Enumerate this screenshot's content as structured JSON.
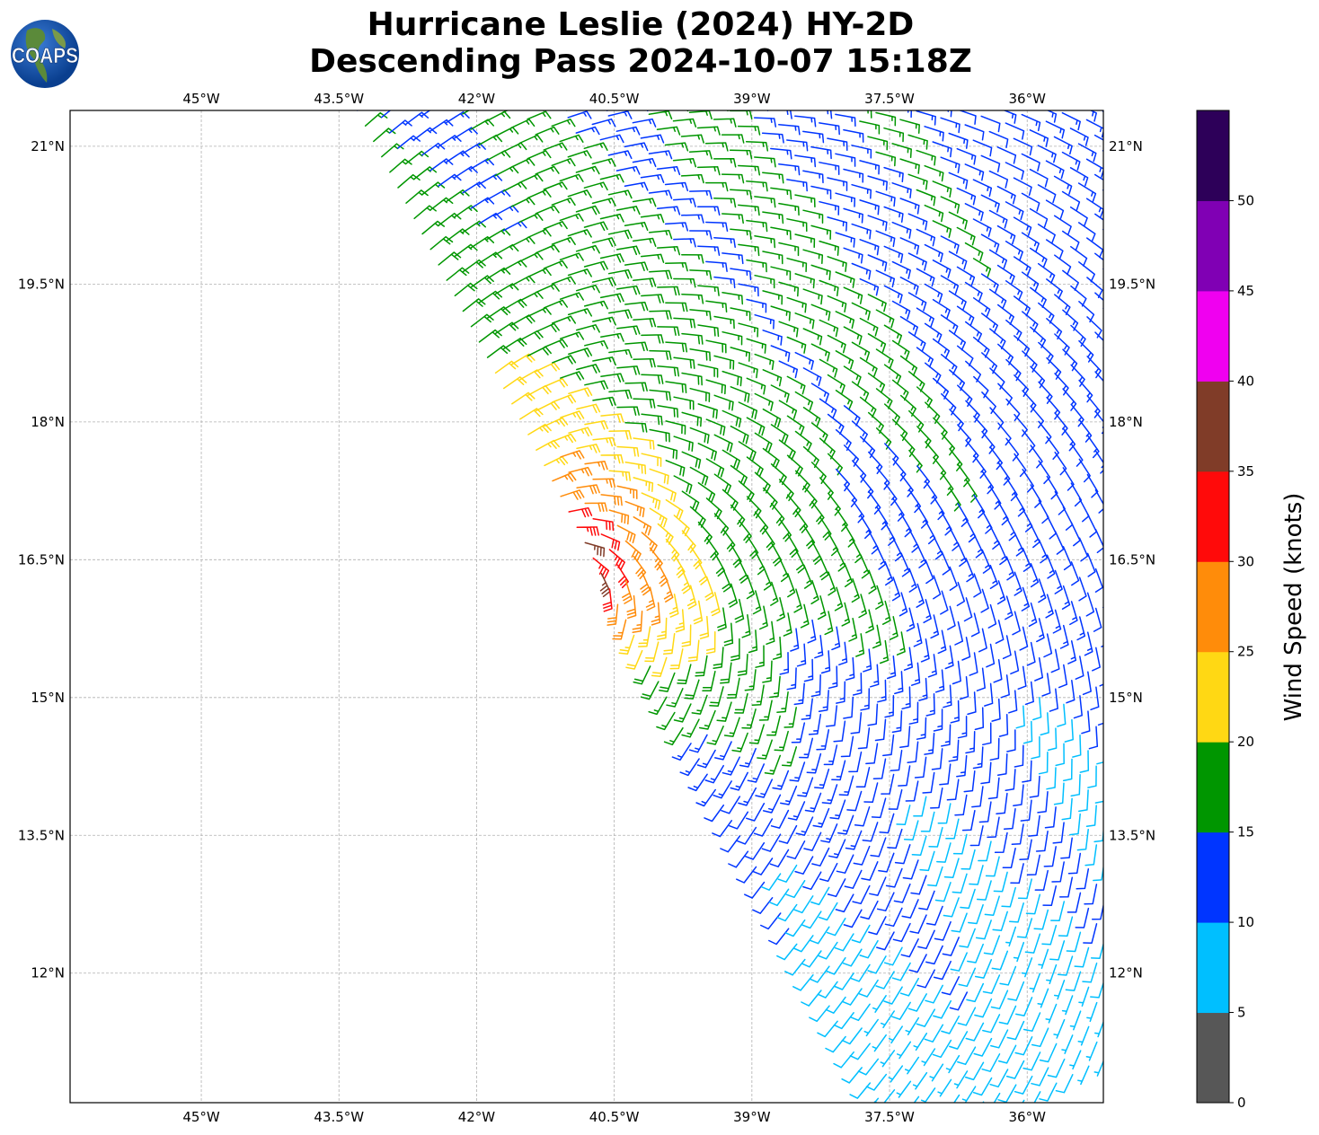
{
  "title": {
    "line1": "Hurricane Leslie (2024) HY-2D",
    "line2": "Descending Pass 2024-10-07 15:18Z"
  },
  "logo": {
    "text": "COAPS"
  },
  "chart_data": {
    "type": "wind_barbs",
    "lon_ticks": [
      {
        "value": -45,
        "label": "45°W"
      },
      {
        "value": -43.5,
        "label": "43.5°W"
      },
      {
        "value": -42,
        "label": "42°W"
      },
      {
        "value": -40.5,
        "label": "40.5°W"
      },
      {
        "value": -39,
        "label": "39°W"
      },
      {
        "value": -37.5,
        "label": "37.5°W"
      },
      {
        "value": -36,
        "label": "36°W"
      }
    ],
    "lat_ticks": [
      {
        "value": 21,
        "label": "21°N"
      },
      {
        "value": 19.5,
        "label": "19.5°N"
      },
      {
        "value": 18,
        "label": "18°N"
      },
      {
        "value": 16.5,
        "label": "16.5°N"
      },
      {
        "value": 15,
        "label": "15°N"
      },
      {
        "value": 13.5,
        "label": "13.5°N"
      },
      {
        "value": 12,
        "label": "12°N"
      }
    ],
    "lon_range": [
      -46.43,
      -35.17
    ],
    "lat_range": [
      10.59,
      21.39
    ],
    "grid": true,
    "wind_field": {
      "center_lon": -41.1,
      "center_lat": 16.3,
      "max_wind_kt": 36,
      "rmax_deg": 0.45,
      "decay_exp": 0.45,
      "swath_top": [
        -43.3,
        21.39
      ],
      "swath_bottom": [
        -37.6,
        10.59
      ]
    },
    "colorbar": {
      "label": "Wind Speed (knots)",
      "ticks": [
        "0",
        "5",
        "10",
        "15",
        "20",
        "25",
        "30",
        "35",
        "40",
        "45",
        "50"
      ],
      "range": [
        0,
        55
      ],
      "bins": [
        "#575757",
        "#00bfff",
        "#0035ff",
        "#009600",
        "#ffd814",
        "#ff8c0a",
        "#ff0a0a",
        "#803c28",
        "#f000f0",
        "#8000b4",
        "#2d0059"
      ]
    }
  }
}
